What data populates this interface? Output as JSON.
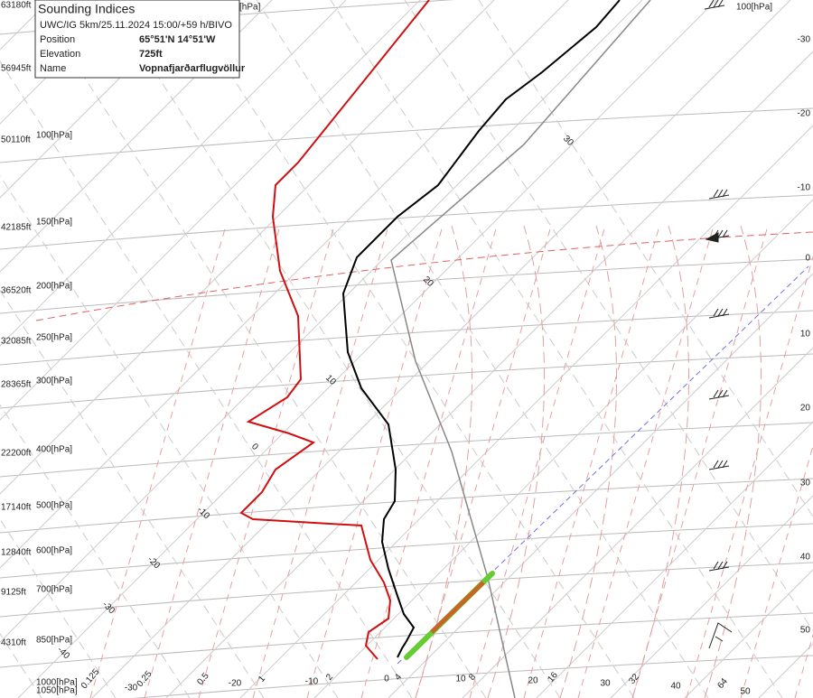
{
  "info": {
    "title": "Sounding Indices",
    "subtitle": "UWC/IG 5km/25.11.2024 15:00/+59 h/BIVO",
    "rows": [
      [
        "Position",
        "65°51'N 14°51'W"
      ],
      [
        "Elevation",
        "725ft"
      ],
      [
        "Name",
        "Vopnafjarðarflugvöllur"
      ]
    ]
  },
  "altitudes": [
    "63180ft",
    "56945ft",
    "50110ft",
    "42185ft",
    "36520ft",
    "32085ft",
    "28365ft",
    "22200ft",
    "17140ft",
    "12840ft",
    "9125ft",
    "4310ft"
  ],
  "pressures": [
    "[hPa]",
    "100[hPa]",
    "100[hPa]",
    "150[hPa]",
    "200[hPa]",
    "250[hPa]",
    "300[hPa]",
    "400[hPa]",
    "500[hPa]",
    "600[hPa]",
    "700[hPa]",
    "850[hPa]",
    "1000[hPa]",
    "1050[hPa]"
  ],
  "right_temps": [
    "-30",
    "-20",
    "-10",
    "0",
    "10",
    "20",
    "30",
    "40",
    "50"
  ],
  "isotherm_labels": [
    "30",
    "20",
    "10",
    "0",
    "-10",
    "-20",
    "-30",
    "-40"
  ],
  "bottom_labels": [
    "0.125",
    "-30",
    "0.25",
    "0.5",
    "-20",
    "1",
    "-10",
    "2",
    "0",
    "4",
    "10",
    "8",
    "20",
    "16",
    "30",
    "32",
    "40",
    "64",
    "50"
  ]
}
